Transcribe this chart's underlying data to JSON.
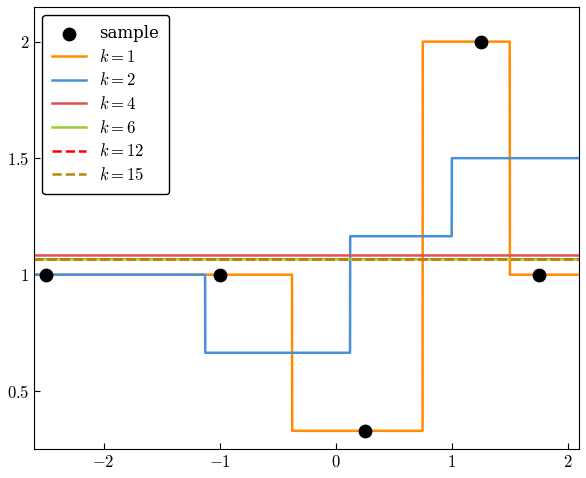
{
  "sample_x": [
    -2.5,
    -1.0,
    0.25,
    1.25,
    1.75
  ],
  "sample_y": [
    1.0,
    1.0,
    0.33,
    2.0,
    1.0
  ],
  "k_values": [
    1,
    2,
    4,
    6,
    12,
    15
  ],
  "colors": [
    "#FF8C00",
    "#4A90D9",
    "#E05050",
    "#9ACD32",
    "#FF0000",
    "#B8860B"
  ],
  "linestyles": [
    "-",
    "-",
    "-",
    "-",
    "--",
    "--"
  ],
  "linewidths": [
    1.8,
    1.8,
    1.8,
    1.8,
    1.8,
    1.8
  ],
  "x_min": -2.6,
  "x_max": 2.1,
  "y_min": 0.25,
  "y_max": 2.15,
  "xticks": [
    -2,
    -1,
    0,
    1,
    2
  ],
  "yticks": [
    0.5,
    1.0,
    1.5,
    2.0
  ],
  "sample_dot_size": 80,
  "bg_color": "#ffffff"
}
